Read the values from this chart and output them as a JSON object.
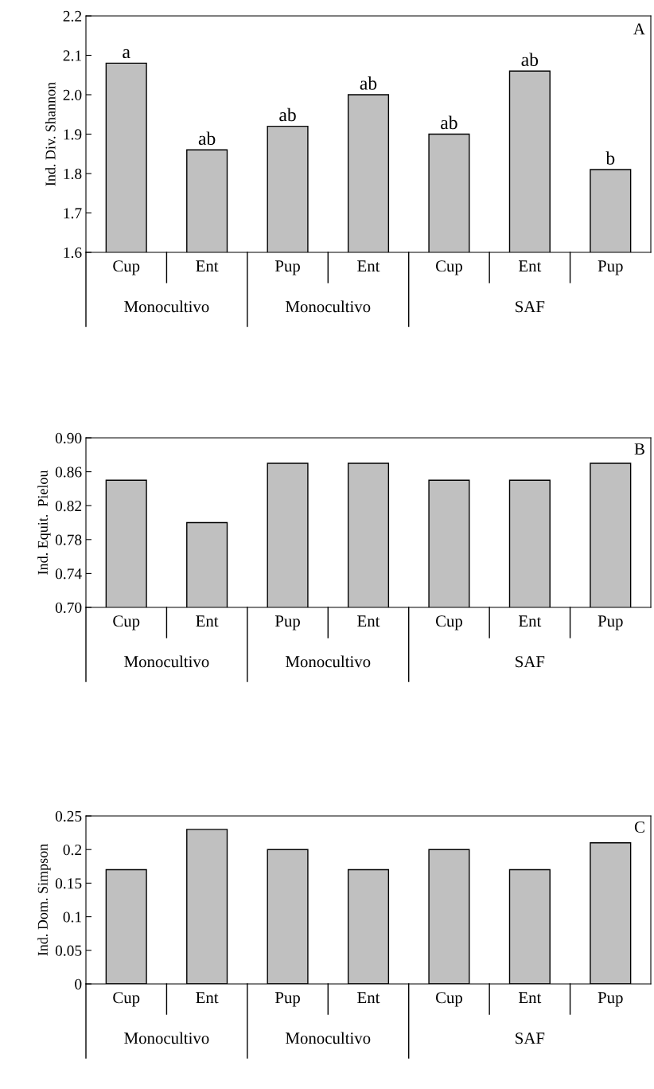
{
  "chart_data": [
    {
      "type": "bar",
      "title": "A",
      "ylabel": "Ind. Div. Shannon",
      "categories": [
        "Cup",
        "Ent",
        "Pup",
        "Ent",
        "Cup",
        "Ent",
        "Pup"
      ],
      "values": [
        2.08,
        1.86,
        1.92,
        2.0,
        1.9,
        2.06,
        1.81
      ],
      "value_labels": [
        "a",
        "ab",
        "ab",
        "ab",
        "ab",
        "ab",
        "b"
      ],
      "color": "#c0c0c0",
      "ylim": [
        1.6,
        2.2
      ],
      "yticks": [
        1.6,
        1.7,
        1.8,
        1.9,
        {
          "value": 2.0,
          "label": "2.0"
        },
        2.1,
        2.2
      ],
      "grid": false,
      "annotations": [
        "Monocultivo",
        "Monocultivo",
        "SAF"
      ]
    },
    {
      "type": "bar",
      "title": "B",
      "ylabel": "Ind. Equit.  Pielou",
      "categories": [
        "Cup",
        "Ent",
        "Pup",
        "Ent",
        "Cup",
        "Ent",
        "Pup"
      ],
      "values": [
        0.85,
        0.8,
        0.87,
        0.87,
        0.85,
        0.85,
        0.87
      ],
      "color": "#c0c0c0",
      "ylim": [
        0.7,
        0.9
      ],
      "yticks": [
        {
          "value": 0.7,
          "label": "0.70"
        },
        {
          "value": 0.74,
          "label": "0.74"
        },
        {
          "value": 0.78,
          "label": "0.78"
        },
        {
          "value": 0.82,
          "label": "0.82"
        },
        {
          "value": 0.86,
          "label": "0.86"
        },
        {
          "value": 0.9,
          "label": "0.90"
        }
      ],
      "grid": false,
      "annotations": [
        "Monocultivo",
        "Monocultivo",
        "SAF"
      ]
    },
    {
      "type": "bar",
      "title": "C",
      "ylabel": "Ind. Dom. Simpson",
      "categories": [
        "Cup",
        "Ent",
        "Pup",
        "Ent",
        "Cup",
        "Ent",
        "Pup"
      ],
      "values": [
        0.17,
        0.23,
        0.2,
        0.17,
        0.2,
        0.17,
        0.21
      ],
      "color": "#c0c0c0",
      "ylim": [
        0,
        0.25
      ],
      "yticks": [
        0,
        0.05,
        0.1,
        0.15,
        0.2,
        0.25
      ],
      "grid": false,
      "annotations": [
        "Monocultivo",
        "Monocultivo",
        "SAF"
      ]
    }
  ]
}
